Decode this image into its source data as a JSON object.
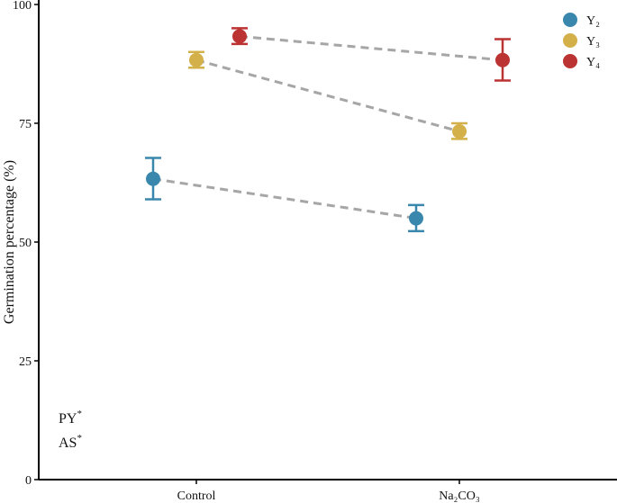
{
  "chart_data": {
    "type": "scatter",
    "title": "",
    "xlabel": "",
    "ylabel": "Germination percentage (%)",
    "categories": [
      "Control",
      "Na₂CO₃"
    ],
    "ylim": [
      0,
      100
    ],
    "yticks": [
      0,
      25,
      50,
      75,
      100
    ],
    "grid": false,
    "legend_position": "top-right",
    "connector_style": "dashed",
    "series": [
      {
        "name": "Y₂",
        "color": "#3a87ad",
        "values": [
          63.3,
          55.0
        ],
        "errors": [
          [
            59.0,
            67.7
          ],
          [
            52.3,
            57.8
          ]
        ]
      },
      {
        "name": "Y₃",
        "color": "#d4b04a",
        "values": [
          88.3,
          73.3
        ],
        "errors": [
          [
            86.7,
            90.0
          ],
          [
            71.7,
            75.0
          ]
        ]
      },
      {
        "name": "Y₄",
        "color": "#bb3333",
        "values": [
          93.3,
          88.3
        ],
        "errors": [
          [
            91.7,
            95.0
          ],
          [
            84.0,
            92.7
          ]
        ]
      }
    ],
    "annotations": [
      {
        "text": "PY",
        "superscript": "*"
      },
      {
        "text": "AS",
        "superscript": "*"
      }
    ]
  }
}
